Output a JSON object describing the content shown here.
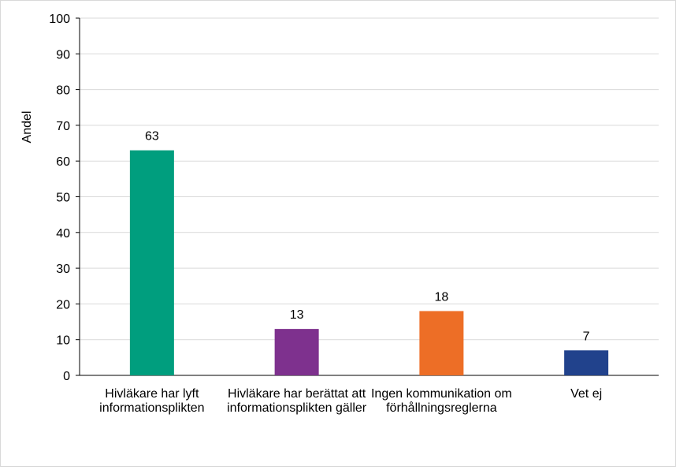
{
  "chart_data": {
    "type": "bar",
    "categories": [
      "Hivläkare har lyft informationsplikten",
      "Hivläkare har berättat att informationsplikten gäller",
      "Ingen kommunikation om förhållningsreglerna",
      "Vet ej"
    ],
    "values": [
      63,
      13,
      18,
      7
    ],
    "colors": [
      "#009E7E",
      "#7E318E",
      "#ED6E26",
      "#21428C"
    ],
    "title": "",
    "xlabel": "",
    "ylabel": "Andel",
    "ylim": [
      0,
      100
    ],
    "yticks": [
      0,
      10,
      20,
      30,
      40,
      50,
      60,
      70,
      80,
      90,
      100
    ],
    "grid": true,
    "legend": "none",
    "data_labels": true
  }
}
